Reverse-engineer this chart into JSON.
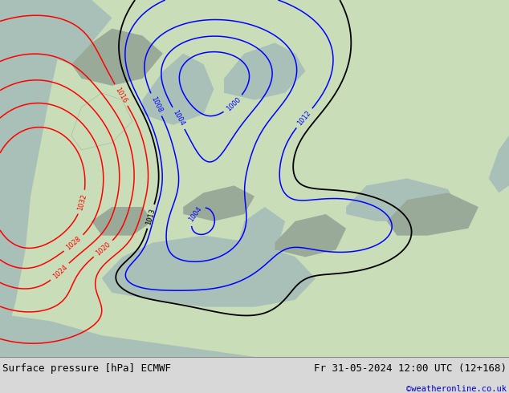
{
  "title_left": "Surface pressure [hPa] ECMWF",
  "title_right": "Fr 31-05-2024 12:00 UTC (12+168)",
  "copyright": "©weatheronline.co.uk",
  "copyright_color": "#0000cc",
  "footer_bg": "#d8d8d8",
  "land_color": "#c8ddb8",
  "ocean_color": "#a8c0b8",
  "gray_color": "#9aaa98",
  "fig_width": 6.34,
  "fig_height": 4.9,
  "dpi": 100,
  "levels_red": [
    1016,
    1020,
    1024,
    1028,
    1032
  ],
  "levels_blue": [
    1000,
    1004,
    1008,
    1012
  ],
  "levels_black": [
    1013
  ],
  "lw_red": 1.1,
  "lw_blue": 1.1,
  "lw_black": 1.3,
  "label_fontsize": 6.0
}
